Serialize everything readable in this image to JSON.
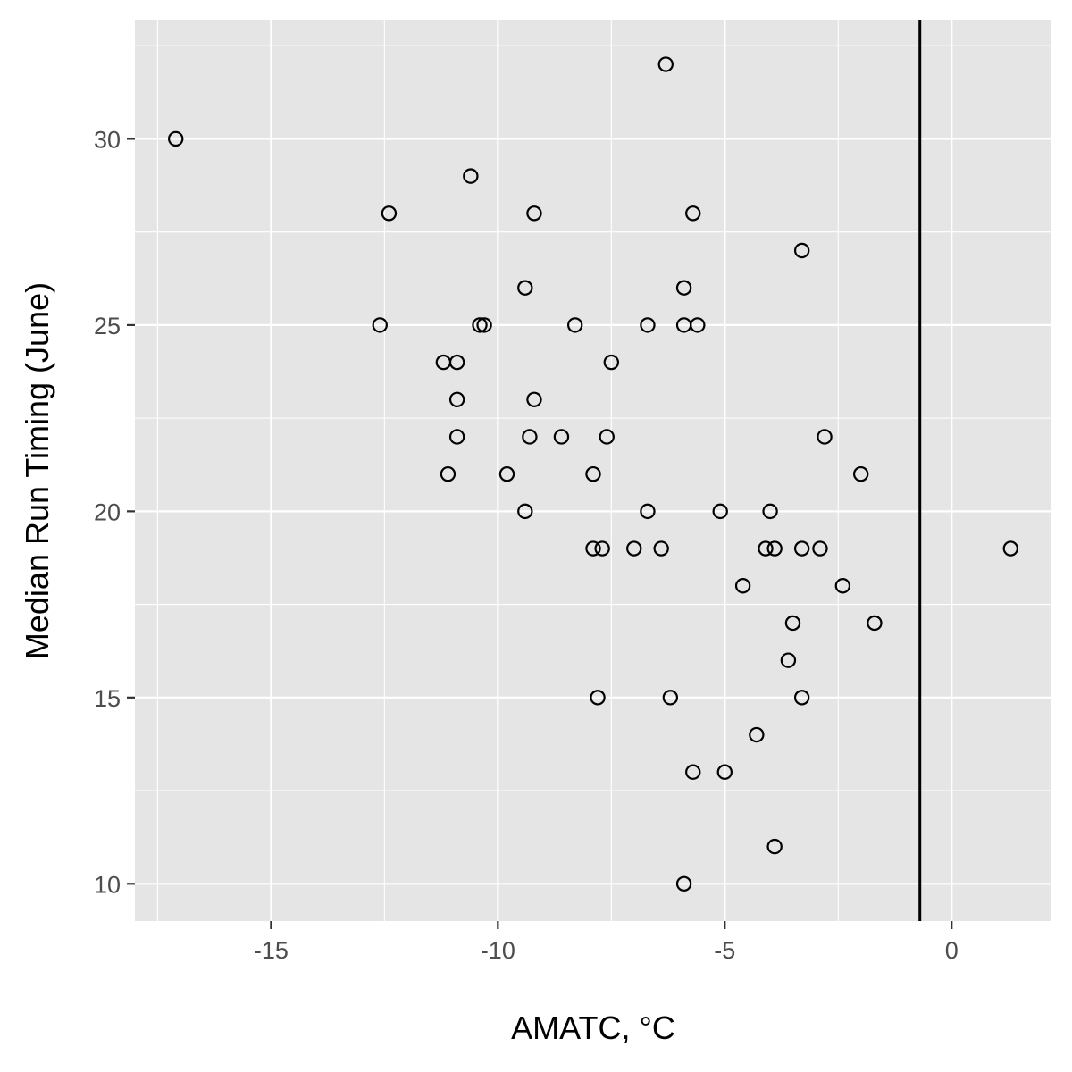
{
  "chart_data": {
    "type": "scatter",
    "title": "",
    "xlabel": "AMATC, °C",
    "ylabel": "Median Run Timing (June)",
    "xlim": [
      -18.0,
      2.2
    ],
    "ylim": [
      9.0,
      33.2
    ],
    "x_ticks": [
      -15,
      -10,
      -5,
      0
    ],
    "x_tick_labels": [
      "-15",
      "-10",
      "-5",
      "0"
    ],
    "y_ticks": [
      10,
      15,
      20,
      25,
      30
    ],
    "y_tick_labels": [
      "10",
      "15",
      "20",
      "25",
      "30"
    ],
    "grid": true,
    "background": "#e5e5e5",
    "vline_x": -0.7,
    "points": [
      {
        "x": -17.1,
        "y": 30
      },
      {
        "x": -6.3,
        "y": 32
      },
      {
        "x": -10.6,
        "y": 29
      },
      {
        "x": -12.4,
        "y": 28
      },
      {
        "x": -9.2,
        "y": 28
      },
      {
        "x": -5.7,
        "y": 28
      },
      {
        "x": -3.3,
        "y": 27
      },
      {
        "x": -9.4,
        "y": 26
      },
      {
        "x": -5.9,
        "y": 26
      },
      {
        "x": -12.6,
        "y": 25
      },
      {
        "x": -10.4,
        "y": 25
      },
      {
        "x": -10.3,
        "y": 25
      },
      {
        "x": -8.3,
        "y": 25
      },
      {
        "x": -6.7,
        "y": 25
      },
      {
        "x": -5.9,
        "y": 25
      },
      {
        "x": -5.6,
        "y": 25
      },
      {
        "x": -11.2,
        "y": 24
      },
      {
        "x": -10.9,
        "y": 24
      },
      {
        "x": -7.5,
        "y": 24
      },
      {
        "x": -10.9,
        "y": 23
      },
      {
        "x": -9.2,
        "y": 23
      },
      {
        "x": -10.9,
        "y": 22
      },
      {
        "x": -9.3,
        "y": 22
      },
      {
        "x": -8.6,
        "y": 22
      },
      {
        "x": -7.6,
        "y": 22
      },
      {
        "x": -2.8,
        "y": 22
      },
      {
        "x": -11.1,
        "y": 21
      },
      {
        "x": -9.8,
        "y": 21
      },
      {
        "x": -7.9,
        "y": 21
      },
      {
        "x": -2.0,
        "y": 21
      },
      {
        "x": -9.4,
        "y": 20
      },
      {
        "x": -6.7,
        "y": 20
      },
      {
        "x": -5.1,
        "y": 20
      },
      {
        "x": -4.0,
        "y": 20
      },
      {
        "x": -7.9,
        "y": 19
      },
      {
        "x": -7.7,
        "y": 19
      },
      {
        "x": -7.0,
        "y": 19
      },
      {
        "x": -6.4,
        "y": 19
      },
      {
        "x": -4.1,
        "y": 19
      },
      {
        "x": -3.9,
        "y": 19
      },
      {
        "x": -3.3,
        "y": 19
      },
      {
        "x": -2.9,
        "y": 19
      },
      {
        "x": 1.3,
        "y": 19
      },
      {
        "x": -4.6,
        "y": 18
      },
      {
        "x": -2.4,
        "y": 18
      },
      {
        "x": -3.5,
        "y": 17
      },
      {
        "x": -1.7,
        "y": 17
      },
      {
        "x": -3.6,
        "y": 16
      },
      {
        "x": -7.8,
        "y": 15
      },
      {
        "x": -6.2,
        "y": 15
      },
      {
        "x": -3.3,
        "y": 15
      },
      {
        "x": -4.3,
        "y": 14
      },
      {
        "x": -5.7,
        "y": 13
      },
      {
        "x": -5.0,
        "y": 13
      },
      {
        "x": -3.9,
        "y": 11
      },
      {
        "x": -5.9,
        "y": 10
      }
    ]
  }
}
